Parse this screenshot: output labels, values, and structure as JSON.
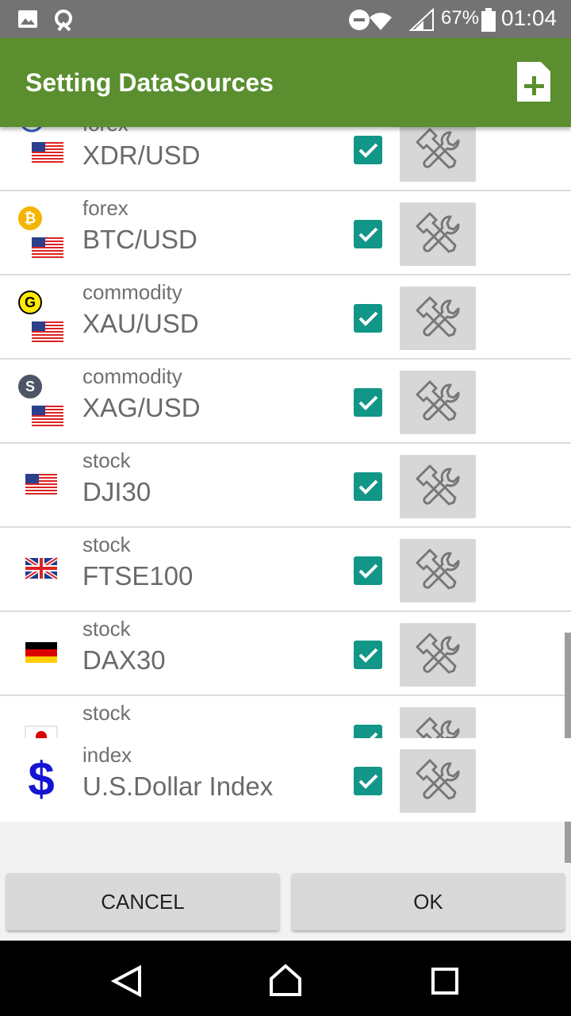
{
  "status_bar": {
    "battery": "67%",
    "time": "01:04"
  },
  "app_bar": {
    "title": "Setting DataSources"
  },
  "rows": [
    {
      "category": "forex",
      "name": "XDR/USD"
    },
    {
      "category": "forex",
      "name": "BTC/USD",
      "badge": "₿"
    },
    {
      "category": "commodity",
      "name": "XAU/USD",
      "badge": "G"
    },
    {
      "category": "commodity",
      "name": "XAG/USD",
      "badge": "S"
    },
    {
      "category": "stock",
      "name": "DJI30"
    },
    {
      "category": "stock",
      "name": "FTSE100"
    },
    {
      "category": "stock",
      "name": "DAX30"
    },
    {
      "category": "stock"
    }
  ],
  "pinned_row": {
    "category": "index",
    "name": "U.S.Dollar Index",
    "badge": "$"
  },
  "buttons": {
    "cancel": "CANCEL",
    "ok": "OK"
  }
}
